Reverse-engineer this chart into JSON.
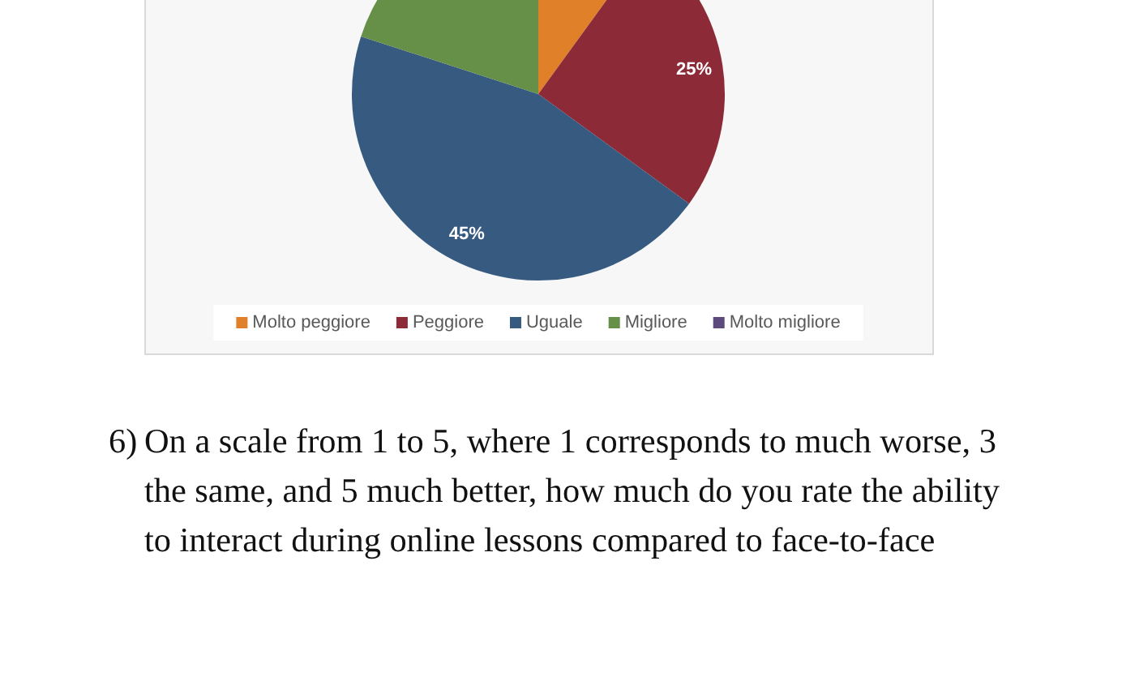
{
  "chart_data": {
    "type": "pie",
    "categories": [
      "Molto peggiore",
      "Peggiore",
      "Uguale",
      "Migliore",
      "Molto migliore"
    ],
    "values": [
      10,
      25,
      45,
      20,
      0
    ],
    "colors": [
      "#e0812a",
      "#8c2b37",
      "#375a80",
      "#668f48",
      "#5d4a7d"
    ],
    "value_labels": [
      null,
      "25%",
      "45%",
      null,
      null
    ],
    "legend": "bottom",
    "annotations": [
      "6) On a scale from 1 to 5, where 1 corresponds to much worse, 3 the same, and 5 much better, how much do you rate the ability to interact during online lessons compared to face-to-face"
    ]
  }
}
